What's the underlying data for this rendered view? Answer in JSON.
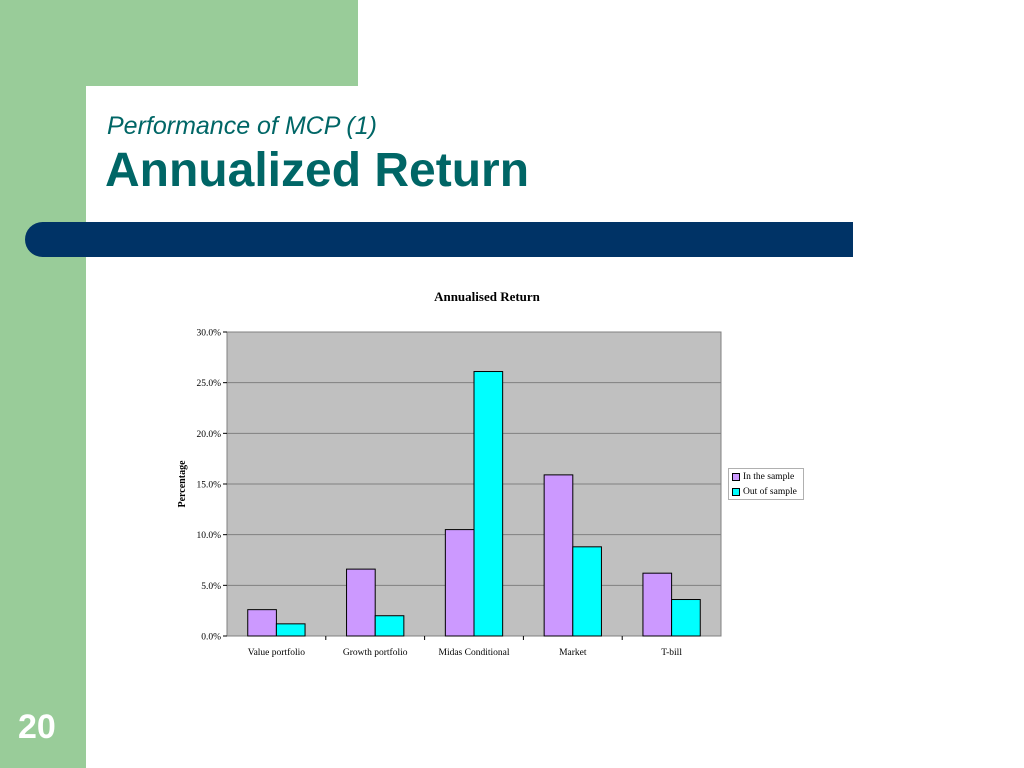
{
  "slide": {
    "subtitle": "Performance of MCP (1)",
    "title": "Annualized Return",
    "number": "20"
  },
  "colors": {
    "green": "#99cc99",
    "teal_text": "#006666",
    "navy_band": "#003366",
    "plot_bg": "#c0c0c0",
    "in_sample": "#cc99ff",
    "out_sample": "#00ffff"
  },
  "chart_data": {
    "type": "bar",
    "title": "Annualised Return",
    "xlabel": "",
    "ylabel": "Percentage",
    "ylim": [
      0,
      30
    ],
    "yticks": [
      "0.0%",
      "5.0%",
      "10.0%",
      "15.0%",
      "20.0%",
      "25.0%",
      "30.0%"
    ],
    "grid": true,
    "legend_position": "right",
    "categories": [
      "Value portfolio",
      "Growth portfolio",
      "Midas Conditional",
      "Market",
      "T-bill"
    ],
    "series": [
      {
        "name": "In the sample",
        "color": "#cc99ff",
        "values": [
          2.6,
          6.6,
          10.5,
          15.9,
          6.2
        ]
      },
      {
        "name": "Out of sample",
        "color": "#00ffff",
        "values": [
          1.2,
          2.0,
          26.1,
          8.8,
          3.6
        ]
      }
    ]
  }
}
